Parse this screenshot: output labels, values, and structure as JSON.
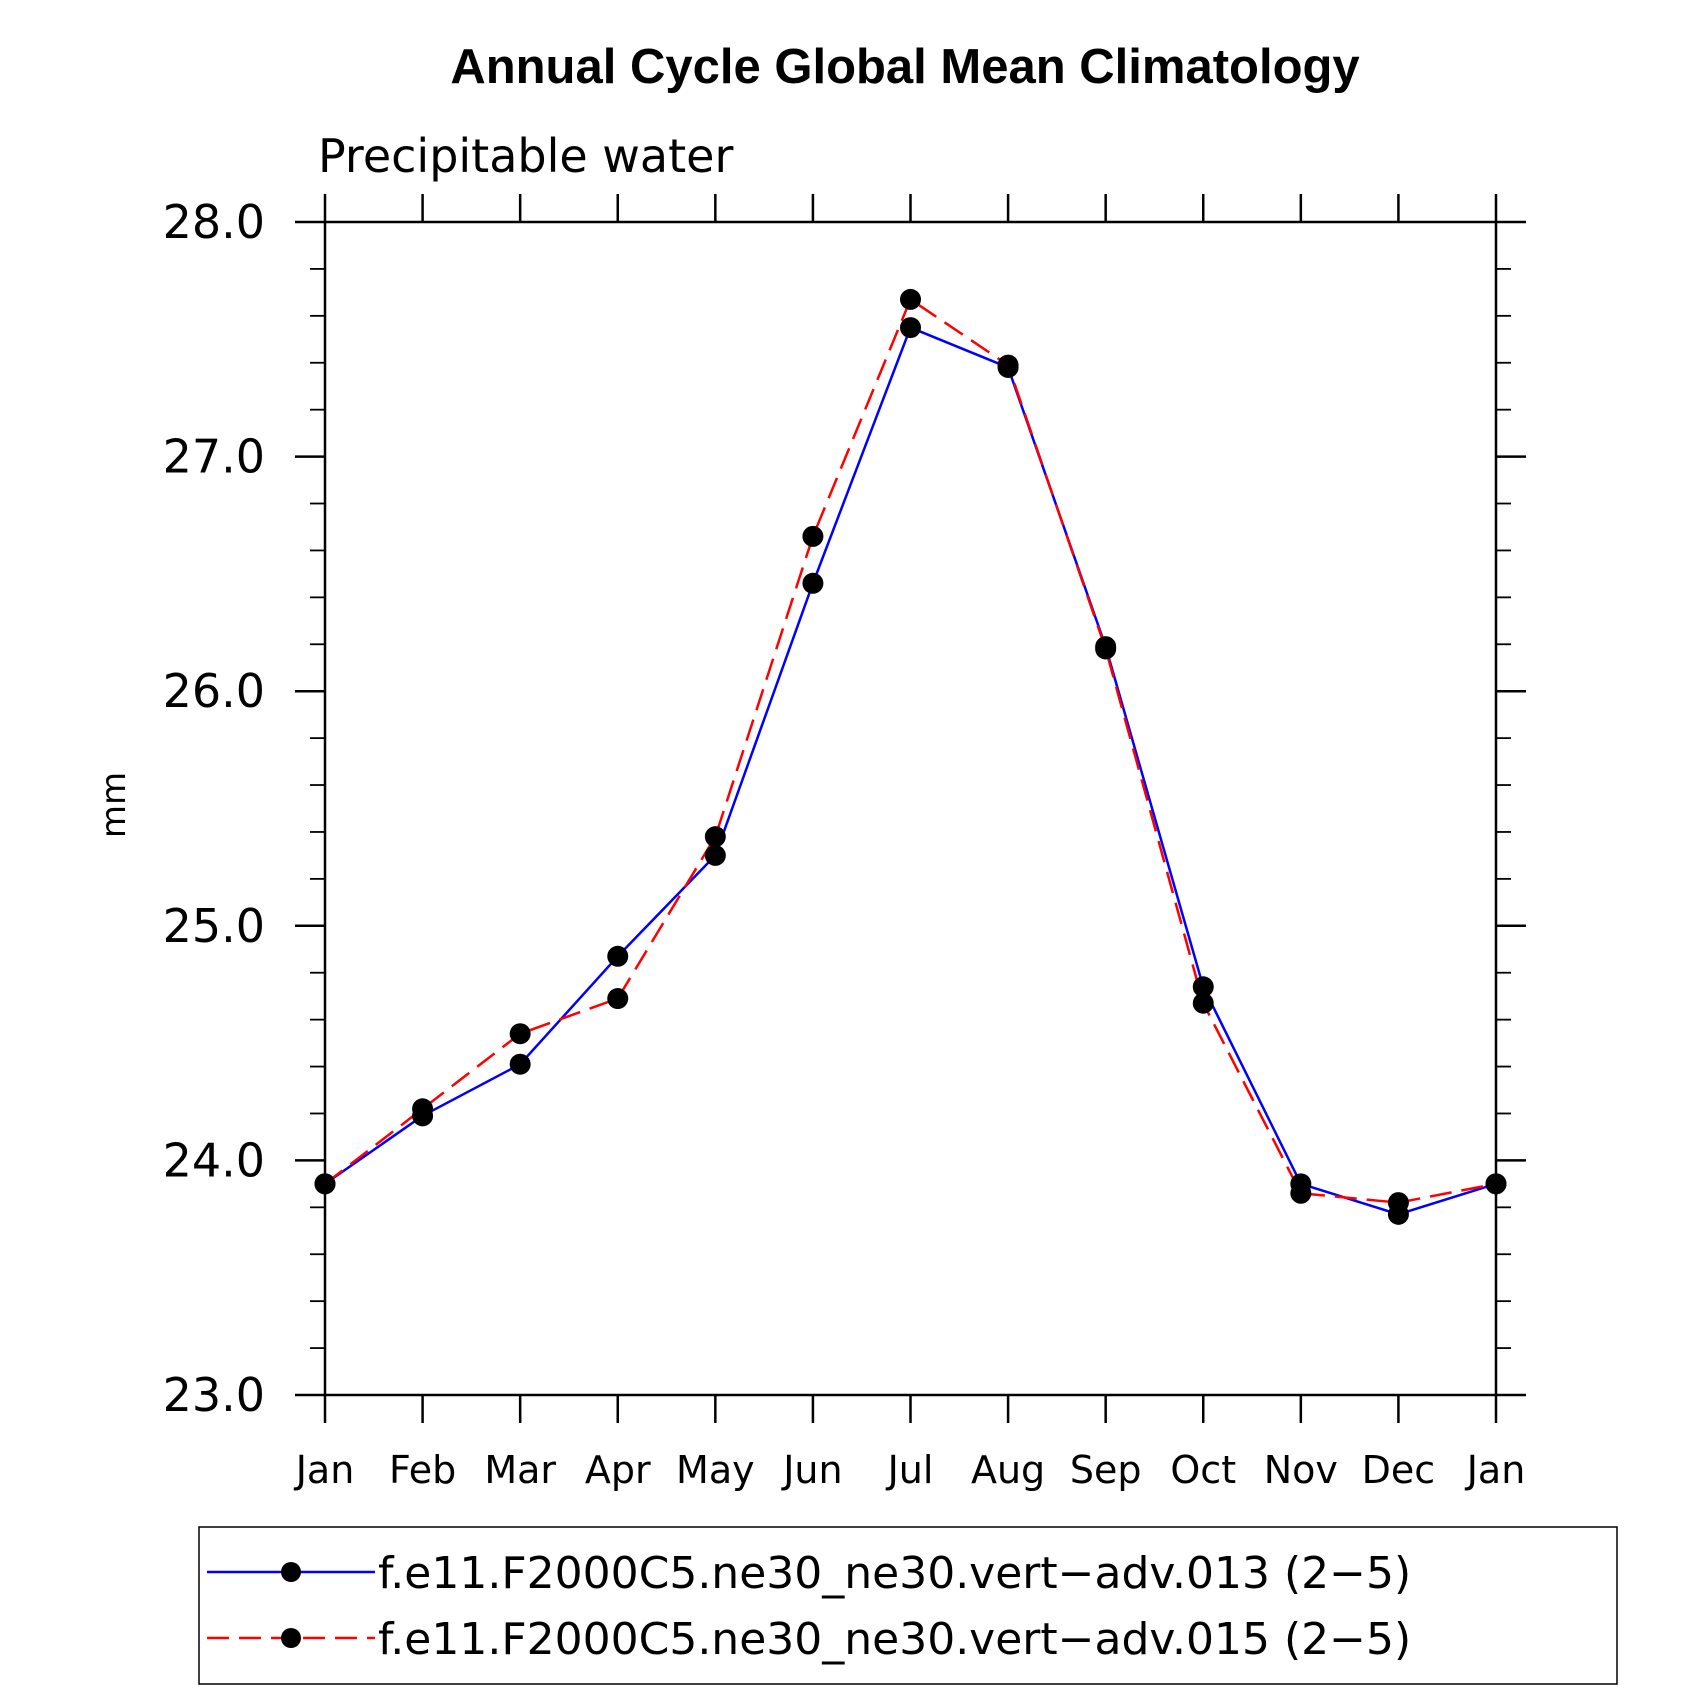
{
  "chart_data": {
    "type": "line",
    "title": "Annual Cycle Global Mean Climatology",
    "subtitle": "Precipitable water",
    "ylabel": "mm",
    "xlabel": "",
    "categories": [
      "Jan",
      "Feb",
      "Mar",
      "Apr",
      "May",
      "Jun",
      "Jul",
      "Aug",
      "Sep",
      "Oct",
      "Nov",
      "Dec",
      "Jan"
    ],
    "ylim": [
      23.0,
      28.0
    ],
    "yticks": [
      "23.0",
      "24.0",
      "25.0",
      "26.0",
      "27.0",
      "28.0"
    ],
    "grid": false,
    "legend_position": "bottom",
    "series": [
      {
        "name": "f.e11.F2000C5.ne30_ne30.vert−adv.013 (2−5)",
        "color": "#0000ff",
        "dash": "solid",
        "marker": "filled-circle",
        "values": [
          23.9,
          24.19,
          24.41,
          24.87,
          25.3,
          26.46,
          27.55,
          27.38,
          26.19,
          24.74,
          23.9,
          23.77,
          23.9
        ]
      },
      {
        "name": "f.e11.F2000C5.ne30_ne30.vert−adv.015 (2−5)",
        "color": "#ff0000",
        "dash": "dashed",
        "marker": "filled-circle",
        "values": [
          23.9,
          24.22,
          24.54,
          24.69,
          25.38,
          26.66,
          27.67,
          27.39,
          26.18,
          24.67,
          23.86,
          23.82,
          23.9
        ]
      }
    ]
  }
}
